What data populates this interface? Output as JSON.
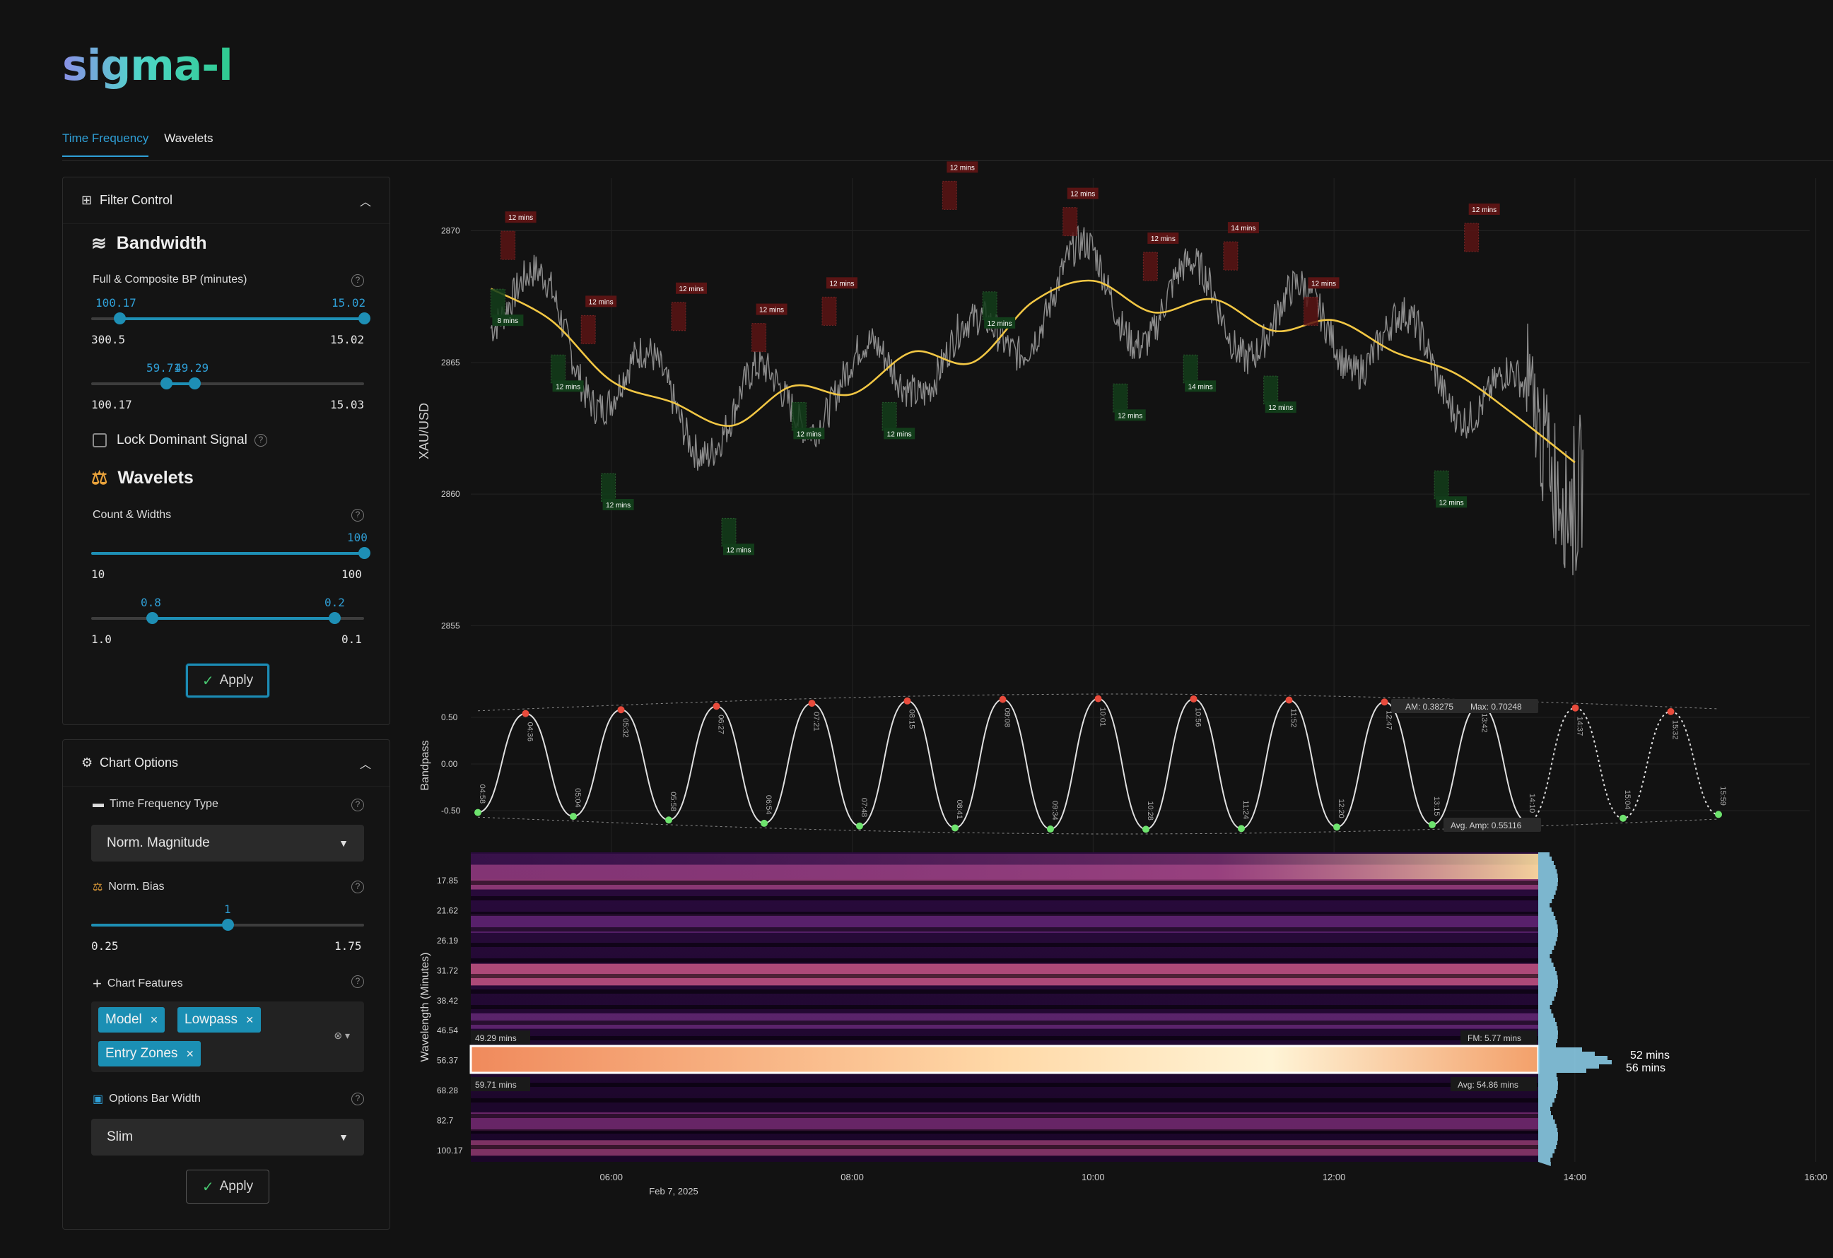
{
  "app": {
    "logo": "sigma-l"
  },
  "tabs": [
    {
      "label": "Time Frequency",
      "active": true
    },
    {
      "label": "Wavelets",
      "active": false
    }
  ],
  "filter_control": {
    "title": "Filter Control",
    "bandwidth": {
      "title": "Bandwidth",
      "label": "Full & Composite BP (minutes)",
      "full_slider": {
        "low_value": "100.17",
        "high_value": "15.02",
        "min": "300.5",
        "max": "15.02"
      },
      "composite_slider": {
        "low_value": "59.71",
        "high_value": "49.29",
        "min": "100.17",
        "max": "15.03"
      }
    },
    "lock_dominant": {
      "label": "Lock Dominant Signal",
      "checked": false
    },
    "wavelets": {
      "title": "Wavelets",
      "label": "Count & Widths",
      "count_slider": {
        "value": "100",
        "min": "10",
        "max": "100"
      },
      "width_slider": {
        "low_value": "0.8",
        "high_value": "0.2",
        "min": "1.0",
        "max": "0.1"
      }
    },
    "apply_label": "Apply"
  },
  "chart_options": {
    "title": "Chart Options",
    "tf_type": {
      "label": "Time Frequency Type",
      "value": "Norm. Magnitude"
    },
    "norm_bias": {
      "label": "Norm. Bias",
      "value": "1",
      "min": "0.25",
      "max": "1.75"
    },
    "chart_features": {
      "label": "Chart Features",
      "chips": [
        "Model",
        "Lowpass",
        "Entry Zones"
      ]
    },
    "options_bar_width": {
      "label": "Options Bar Width",
      "value": "Slim"
    },
    "apply_label": "Apply"
  },
  "icons": {
    "help": "?",
    "check": "✓",
    "close": "×"
  },
  "colors": {
    "accent": "#1e8fb5",
    "lowpass": "#f2c744",
    "peak": "#e84b3c",
    "trough": "#6ee36e",
    "zone_red": "#5a1414",
    "zone_green": "#123d1a"
  },
  "chart_data": [
    {
      "type": "line",
      "name": "price",
      "ylabel": "XAU/USD",
      "yticks": [
        "2870",
        "2865",
        "2860",
        "2855"
      ],
      "ylim": [
        2853,
        2872
      ],
      "xticks": [
        "06:00",
        "08:00",
        "10:00",
        "12:00",
        "14:00",
        "16:00"
      ],
      "xdate": "Feb 7, 2025",
      "lowpass": {
        "x": [
          "05:00",
          "05:30",
          "06:00",
          "06:30",
          "07:00",
          "07:30",
          "08:00",
          "08:30",
          "09:00",
          "09:30",
          "10:00",
          "10:30",
          "11:00",
          "11:30",
          "12:00",
          "12:30",
          "13:00",
          "13:30",
          "14:00"
        ],
        "y": [
          2867.8,
          2866.6,
          2864.3,
          2863.5,
          2862.6,
          2864.1,
          2863.8,
          2865.4,
          2865.0,
          2867.3,
          2868.1,
          2866.9,
          2867.4,
          2866.2,
          2866.6,
          2865.4,
          2864.6,
          2863.0,
          2861.2
        ]
      },
      "zones": [
        {
          "time": "05:05",
          "kind": "sell",
          "label": "12 mins",
          "price": 2869.5
        },
        {
          "time": "05:00",
          "kind": "buy",
          "label": "8 mins",
          "price": 2867.3
        },
        {
          "time": "05:30",
          "kind": "buy",
          "label": "12 mins",
          "price": 2864.8
        },
        {
          "time": "05:45",
          "kind": "sell",
          "label": "12 mins",
          "price": 2866.3
        },
        {
          "time": "05:55",
          "kind": "buy",
          "label": "12 mins",
          "price": 2860.3
        },
        {
          "time": "06:30",
          "kind": "sell",
          "label": "12 mins",
          "price": 2866.8
        },
        {
          "time": "06:55",
          "kind": "buy",
          "label": "12 mins",
          "price": 2858.6
        },
        {
          "time": "07:10",
          "kind": "sell",
          "label": "12 mins",
          "price": 2866.0
        },
        {
          "time": "07:30",
          "kind": "buy",
          "label": "12 mins",
          "price": 2863.0
        },
        {
          "time": "07:45",
          "kind": "sell",
          "label": "12 mins",
          "price": 2867.0
        },
        {
          "time": "08:15",
          "kind": "buy",
          "label": "12 mins",
          "price": 2863.0
        },
        {
          "time": "08:45",
          "kind": "sell",
          "label": "12 mins",
          "price": 2871.4
        },
        {
          "time": "09:05",
          "kind": "buy",
          "label": "12 mins",
          "price": 2867.2
        },
        {
          "time": "09:45",
          "kind": "sell",
          "label": "12 mins",
          "price": 2870.4
        },
        {
          "time": "10:10",
          "kind": "buy",
          "label": "12 mins",
          "price": 2863.7
        },
        {
          "time": "10:25",
          "kind": "sell",
          "label": "12 mins",
          "price": 2868.7
        },
        {
          "time": "10:45",
          "kind": "buy",
          "label": "14 mins",
          "price": 2864.8
        },
        {
          "time": "11:05",
          "kind": "sell",
          "label": "14 mins",
          "price": 2869.1
        },
        {
          "time": "11:25",
          "kind": "buy",
          "label": "12 mins",
          "price": 2864.0
        },
        {
          "time": "11:45",
          "kind": "sell",
          "label": "12 mins",
          "price": 2867.0
        },
        {
          "time": "12:50",
          "kind": "buy",
          "label": "12 mins",
          "price": 2860.4
        },
        {
          "time": "13:05",
          "kind": "sell",
          "label": "12 mins",
          "price": 2869.8
        }
      ]
    },
    {
      "type": "line",
      "name": "bandpass",
      "ylabel": "Bandpass",
      "yticks": [
        "0.50",
        "0.00",
        "-0.50"
      ],
      "ylim": [
        -0.75,
        0.75
      ],
      "am": "AM: 0.38275",
      "max": "Max: 0.70248",
      "avg_amp": "Avg. Amp: 0.55116",
      "turning_points": [
        {
          "time": "04:58",
          "kind": "trough"
        },
        {
          "time": "04:36",
          "kind": "peak"
        },
        {
          "time": "05:04",
          "kind": "trough"
        },
        {
          "time": "05:32",
          "kind": "peak"
        },
        {
          "time": "05:58",
          "kind": "trough"
        },
        {
          "time": "06:27",
          "kind": "peak"
        },
        {
          "time": "06:54",
          "kind": "trough"
        },
        {
          "time": "07:21",
          "kind": "peak"
        },
        {
          "time": "07:48",
          "kind": "trough"
        },
        {
          "time": "08:15",
          "kind": "peak"
        },
        {
          "time": "08:41",
          "kind": "trough"
        },
        {
          "time": "09:08",
          "kind": "peak"
        },
        {
          "time": "09:34",
          "kind": "trough"
        },
        {
          "time": "10:01",
          "kind": "peak"
        },
        {
          "time": "10:28",
          "kind": "trough"
        },
        {
          "time": "10:56",
          "kind": "peak"
        },
        {
          "time": "11:24",
          "kind": "trough"
        },
        {
          "time": "11:52",
          "kind": "peak"
        },
        {
          "time": "12:20",
          "kind": "trough"
        },
        {
          "time": "12:47",
          "kind": "peak"
        },
        {
          "time": "13:15",
          "kind": "trough"
        },
        {
          "time": "13:42",
          "kind": "peak"
        },
        {
          "time": "14:10",
          "kind": "trough"
        },
        {
          "time": "14:37",
          "kind": "peak"
        },
        {
          "time": "15:04",
          "kind": "trough"
        },
        {
          "time": "15:32",
          "kind": "peak"
        },
        {
          "time": "15:59",
          "kind": "trough"
        }
      ]
    },
    {
      "type": "heatmap",
      "name": "wavelength",
      "ylabel": "Wavelength (Minutes)",
      "yticks": [
        "17.85",
        "21.62",
        "26.19",
        "31.72",
        "38.42",
        "46.54",
        "56.37",
        "68.28",
        "82.7",
        "100.17"
      ],
      "band_upper": "49.29 mins",
      "band_lower": "59.71 mins",
      "fm": "FM: 5.77 mins",
      "avg": "Avg: 54.86 mins",
      "peak_labels": [
        "52 mins",
        "56 mins"
      ]
    }
  ]
}
